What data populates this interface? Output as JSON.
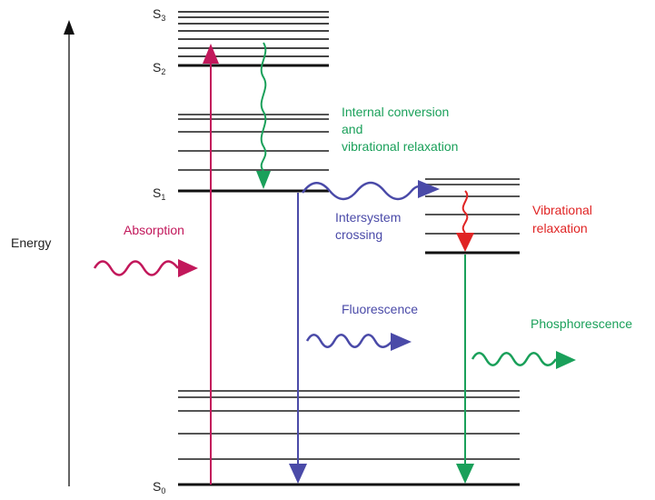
{
  "axis": {
    "label": "Energy"
  },
  "states": {
    "s0": {
      "main": "S",
      "sub": "0"
    },
    "s1": {
      "main": "S",
      "sub": "1"
    },
    "s2": {
      "main": "S",
      "sub": "2"
    },
    "s3": {
      "main": "S",
      "sub": "3"
    }
  },
  "processes": {
    "absorption": "Absorption",
    "internal_conversion": [
      "Internal conversion",
      "and",
      "vibrational relaxation"
    ],
    "intersystem_crossing": [
      "Intersystem",
      "crossing"
    ],
    "vibrational_relaxation": [
      "Vibrational",
      "relaxation"
    ],
    "fluorescence": "Fluorescence",
    "phosphorescence": "Phosphorescence"
  },
  "colors": {
    "absorption": "#c2185b",
    "internal_conversion": "#1aa05a",
    "intersystem_crossing": "#4a4aa8",
    "vibrational_relaxation": "#e02424",
    "fluorescence": "#4a4aa8",
    "phosphorescence": "#1aa05a",
    "level": "#333333"
  }
}
